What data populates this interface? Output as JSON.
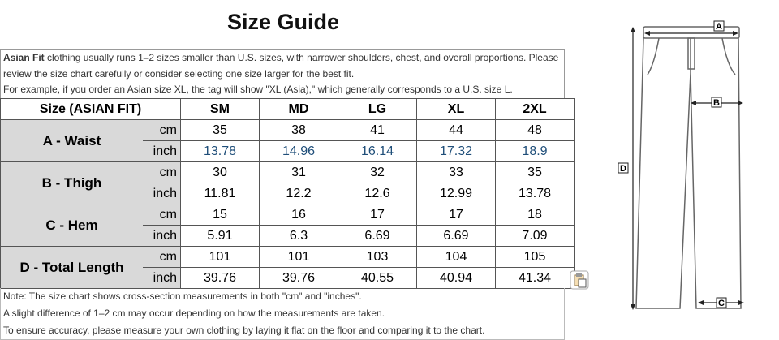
{
  "title": "Size Guide",
  "intro": {
    "bold": "Asian Fit",
    "text": " clothing usually runs 1–2 sizes smaller than U.S. sizes, with narrower shoulders, chest, and overall proportions. Please review the size chart carefully or consider selecting one size larger for the best fit.",
    "example": "For example, if you order an Asian size XL, the tag will show \"XL (Asia),\" which generally corresponds to a U.S. size L."
  },
  "table": {
    "header": [
      "Size (ASIAN FIT)",
      "SM",
      "MD",
      "LG",
      "XL",
      "2XL"
    ],
    "rows": [
      {
        "label": "A - Waist",
        "units": [
          "cm",
          "inch"
        ],
        "values": [
          [
            35,
            38,
            41,
            44,
            48
          ],
          [
            13.78,
            14.96,
            16.14,
            17.32,
            18.9
          ]
        ]
      },
      {
        "label": "B - Thigh",
        "units": [
          "cm",
          "inch"
        ],
        "values": [
          [
            30,
            31,
            32,
            33,
            35
          ],
          [
            11.81,
            12.2,
            12.6,
            12.99,
            13.78
          ]
        ]
      },
      {
        "label": "C - Hem",
        "units": [
          "cm",
          "inch"
        ],
        "values": [
          [
            15,
            16,
            17,
            17,
            18
          ],
          [
            5.91,
            6.3,
            6.69,
            6.69,
            7.09
          ]
        ]
      },
      {
        "label": "D - Total Length",
        "units": [
          "cm",
          "inch"
        ],
        "values": [
          [
            101,
            101,
            103,
            104,
            105
          ],
          [
            39.76,
            39.76,
            40.55,
            40.94,
            41.34
          ]
        ]
      }
    ]
  },
  "notes": [
    "Note: The size chart shows cross-section measurements in both \"cm\" and \"inches\".",
    "A slight difference of 1–2 cm may occur depending on how the measurements are taken.",
    "To ensure accuracy, please measure your own clothing by laying it flat on the floor and comparing it to the chart."
  ],
  "diagram": {
    "labels": [
      "A",
      "B",
      "C",
      "D"
    ]
  }
}
